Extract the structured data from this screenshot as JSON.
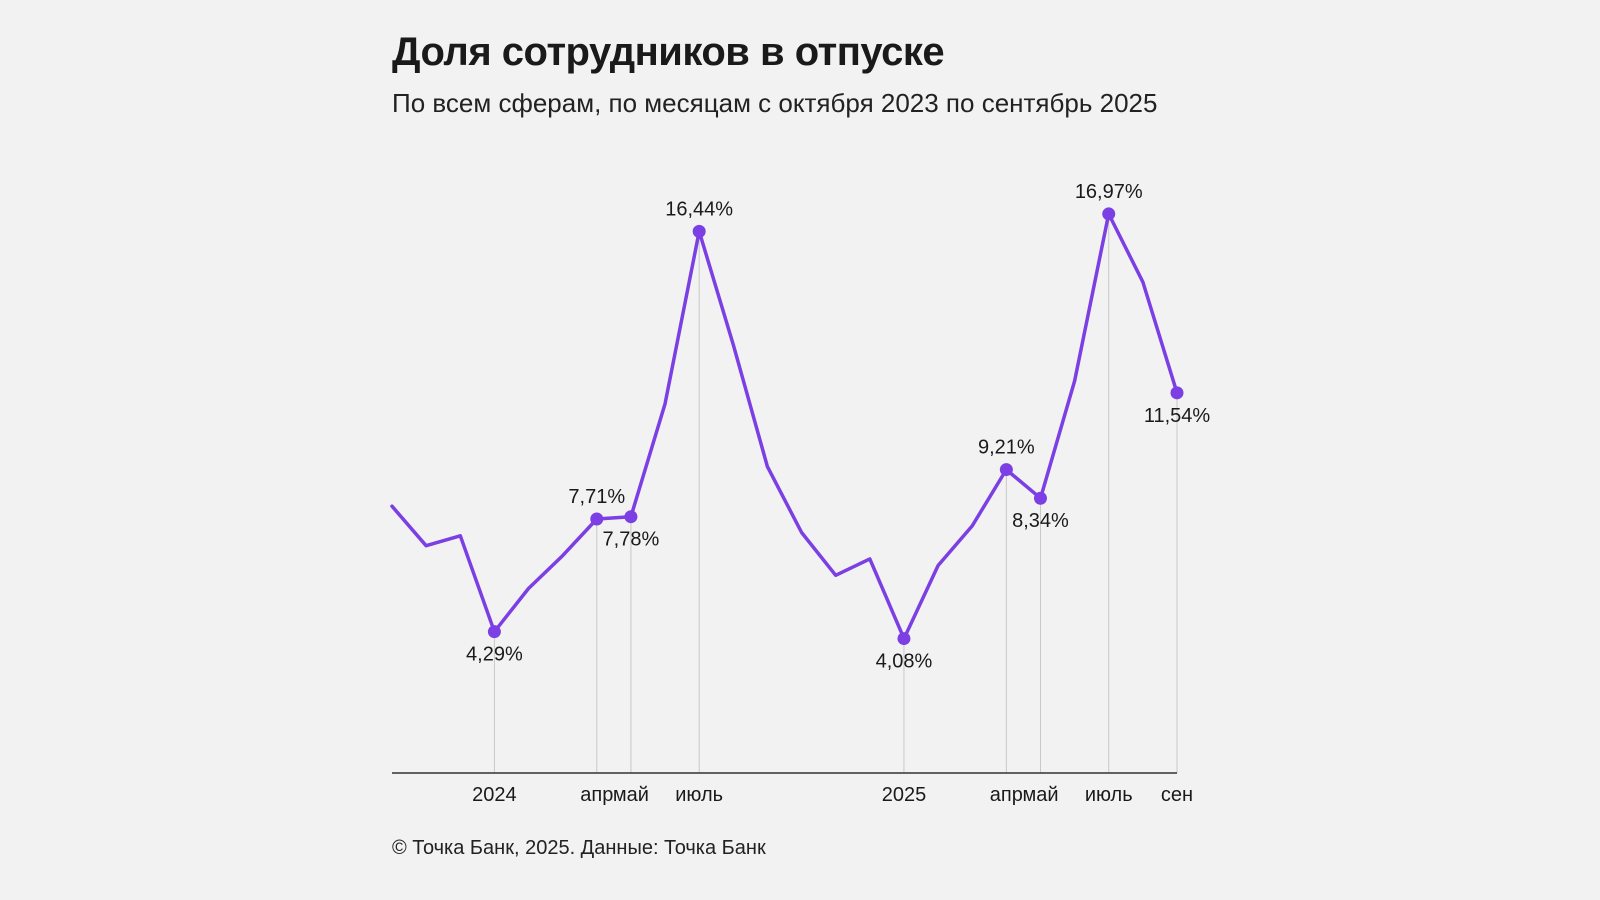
{
  "header": {
    "title": "Доля сотрудников в отпуске",
    "subtitle": "По всем сферам, по месяцам с октября 2023 по сентябрь 2025"
  },
  "footer": {
    "source": "© Точка Банк, 2025. Данные: Точка Банк"
  },
  "colors": {
    "line": "#7b3fe4",
    "axis": "#333333",
    "guide": "#c8c8c8",
    "background": "#f2f2f2"
  },
  "chart_data": {
    "type": "line",
    "title": "Доля сотрудников в отпуске",
    "subtitle": "По всем сферам, по месяцам с октября 2023 по сентябрь 2025",
    "xlabel": "",
    "ylabel": "",
    "ylim": [
      0,
      18
    ],
    "grid": false,
    "x": [
      "2023-10",
      "2023-11",
      "2023-12",
      "2024-01",
      "2024-02",
      "2024-03",
      "2024-04",
      "2024-05",
      "2024-06",
      "2024-07",
      "2024-08",
      "2024-09",
      "2024-10",
      "2024-11",
      "2024-12",
      "2025-01",
      "2025-02",
      "2025-03",
      "2025-04",
      "2025-05",
      "2025-06",
      "2025-07",
      "2025-08",
      "2025-09"
    ],
    "series": [
      {
        "name": "Доля сотрудников в отпуске",
        "values": [
          8.1,
          6.9,
          7.2,
          4.29,
          5.6,
          6.6,
          7.71,
          7.78,
          11.2,
          16.44,
          13.0,
          9.3,
          7.3,
          6.0,
          6.5,
          4.08,
          6.3,
          7.5,
          9.21,
          8.34,
          11.9,
          16.97,
          14.9,
          11.54
        ]
      }
    ],
    "annotations": [
      {
        "index": 3,
        "text": "4,29%",
        "position": "below"
      },
      {
        "index": 6,
        "text": "7,71%",
        "position": "above"
      },
      {
        "index": 7,
        "text": "7,78%",
        "position": "below"
      },
      {
        "index": 9,
        "text": "16,44%",
        "position": "above"
      },
      {
        "index": 15,
        "text": "4,08%",
        "position": "below"
      },
      {
        "index": 18,
        "text": "9,21%",
        "position": "above"
      },
      {
        "index": 19,
        "text": "8,34%",
        "position": "below"
      },
      {
        "index": 21,
        "text": "16,97%",
        "position": "above"
      },
      {
        "index": 23,
        "text": "11,54%",
        "position": "below"
      }
    ],
    "x_ticks": [
      {
        "index": 3,
        "label": "2024"
      },
      {
        "index": 6,
        "label": "апр"
      },
      {
        "index": 7,
        "label": "май"
      },
      {
        "index": 9,
        "label": "июль"
      },
      {
        "index": 15,
        "label": "2025"
      },
      {
        "index": 18,
        "label": "апр"
      },
      {
        "index": 19,
        "label": "май"
      },
      {
        "index": 21,
        "label": "июль"
      },
      {
        "index": 23,
        "label": "сен"
      }
    ]
  }
}
